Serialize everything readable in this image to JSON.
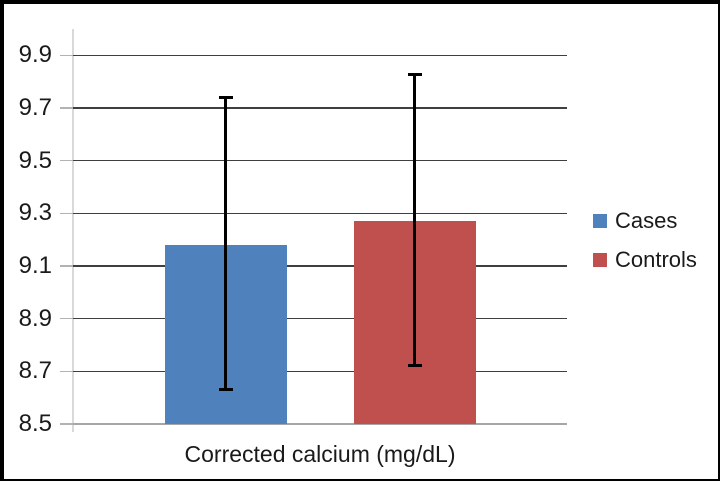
{
  "chart_data": {
    "type": "bar",
    "title": "",
    "xlabel": "Corrected calcium (mg/dL)",
    "ylabel": "",
    "categories": [
      "Cases",
      "Controls"
    ],
    "values": [
      9.18,
      9.27
    ],
    "error_low": [
      8.63,
      8.72
    ],
    "error_high": [
      9.74,
      9.83
    ],
    "ylim": [
      8.5,
      10.0
    ],
    "yticks": [
      "8.5",
      "8.7",
      "8.9",
      "9.1",
      "9.3",
      "9.5",
      "9.7",
      "9.9"
    ],
    "grid": true,
    "legend_position": "right",
    "series_colors": [
      "#4f81bd",
      "#c0504d"
    ]
  },
  "legend": {
    "items": [
      {
        "label": "Cases",
        "color": "#4f81bd"
      },
      {
        "label": "Controls",
        "color": "#c0504d"
      }
    ]
  },
  "colors": {
    "bar_blue": "#4f81bd",
    "bar_red": "#c0504d",
    "gridline": "#3f3f3f",
    "baseline": "#a6a6a6",
    "axis_line": "#d9d9d9",
    "error_bar": "#000000",
    "frame_border": "#000000",
    "background": "#ffffff",
    "text": "#1a1a1a"
  }
}
